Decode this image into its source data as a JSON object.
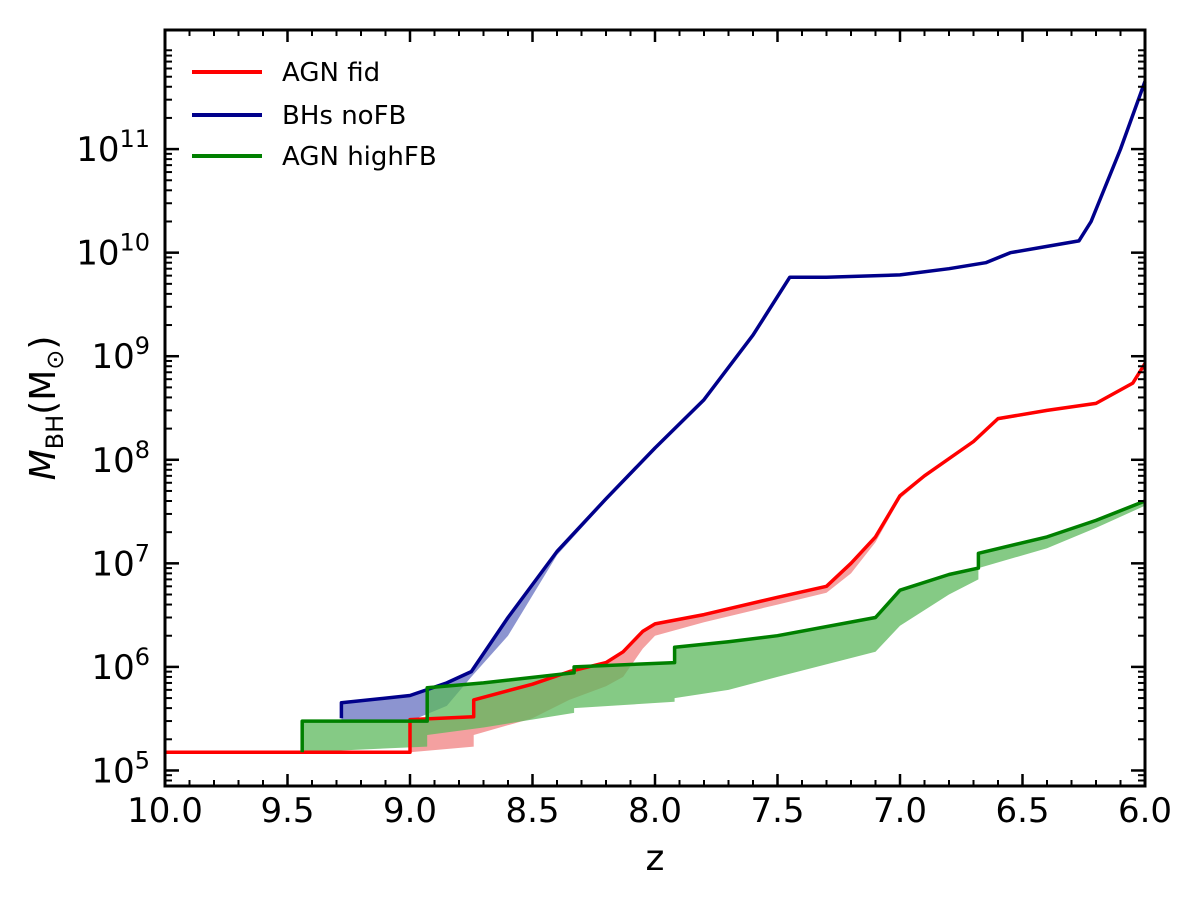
{
  "chart_data": {
    "type": "line",
    "xlabel": "z",
    "ylabel": {
      "main": "M",
      "sub": "BH",
      "unit_open": "(M",
      "unit_sub": "⊙",
      "unit_close": ")"
    },
    "xlim": [
      10.0,
      6.0
    ],
    "ylim_log10": [
      4.85,
      12.15
    ],
    "yscale": "log",
    "xticks": [
      {
        "value": 10.0,
        "label": "10.0"
      },
      {
        "value": 9.5,
        "label": "9.5"
      },
      {
        "value": 9.0,
        "label": "9.0"
      },
      {
        "value": 8.5,
        "label": "8.5"
      },
      {
        "value": 8.0,
        "label": "8.0"
      },
      {
        "value": 7.5,
        "label": "7.5"
      },
      {
        "value": 7.0,
        "label": "7.0"
      },
      {
        "value": 6.5,
        "label": "6.5"
      },
      {
        "value": 6.0,
        "label": "6.0"
      }
    ],
    "yticks": [
      {
        "exp": 5,
        "base": "10",
        "sup": "5"
      },
      {
        "exp": 6,
        "base": "10",
        "sup": "6"
      },
      {
        "exp": 7,
        "base": "10",
        "sup": "7"
      },
      {
        "exp": 8,
        "base": "10",
        "sup": "8"
      },
      {
        "exp": 9,
        "base": "10",
        "sup": "9"
      },
      {
        "exp": 10,
        "base": "10",
        "sup": "10"
      },
      {
        "exp": 11,
        "base": "10",
        "sup": "11"
      }
    ],
    "legend_position": "top-left",
    "series": [
      {
        "name": "AGN fid",
        "color": "#ff0000",
        "band_color": "#f08080",
        "x": [
          10.0,
          9.0,
          9.0,
          8.74,
          8.74,
          8.5,
          8.35,
          8.2,
          8.13,
          8.05,
          8.0,
          7.8,
          7.5,
          7.3,
          7.2,
          7.1,
          7.0,
          6.9,
          6.7,
          6.6,
          6.4,
          6.2,
          6.05,
          6.0
        ],
        "y": [
          150000.0,
          150000.0,
          310000.0,
          330000.0,
          480000.0,
          680000.0,
          900000.0,
          1100000.0,
          1400000.0,
          2200000.0,
          2600000.0,
          3200000.0,
          4700000.0,
          6000000.0,
          10000000.0,
          18000000.0,
          45000000.0,
          70000000.0,
          150000000.0,
          250000000.0,
          300000000.0,
          350000000.0,
          550000000.0,
          850000000.0
        ],
        "band_lower": [
          150000.0,
          150000.0,
          150000.0,
          170000.0,
          220000.0,
          320000.0,
          480000.0,
          650000.0,
          800000.0,
          1500000.0,
          2000000.0,
          2700000.0,
          4000000.0,
          5200000.0,
          8000000.0,
          16000000.0,
          42000000.0,
          67000000.0,
          145000000.0,
          240000000.0,
          290000000.0,
          340000000.0,
          530000000.0,
          820000000.0
        ]
      },
      {
        "name": "BHs noFB",
        "color": "#00008b",
        "band_color": "#6670c0",
        "x": [
          9.28,
          9.28,
          9.0,
          8.85,
          8.75,
          8.6,
          8.4,
          8.2,
          8.0,
          7.8,
          7.6,
          7.45,
          7.3,
          7.0,
          6.8,
          6.65,
          6.55,
          6.4,
          6.27,
          6.22,
          6.1,
          6.0
        ],
        "y": [
          320000.0,
          450000.0,
          530000.0,
          700000.0,
          900000.0,
          3000000.0,
          13000000.0,
          42000000.0,
          130000000.0,
          380000000.0,
          1600000000.0,
          5800000000.0,
          5800000000.0,
          6100000000.0,
          7000000000.0,
          8000000000.0,
          10000000000.0,
          11500000000.0,
          13000000000.0,
          20000000000.0,
          100000000000.0,
          450000000000.0
        ],
        "band_lower": [
          320000.0,
          300000.0,
          300000.0,
          420000.0,
          800000.0,
          2000000.0,
          12000000.0,
          40000000.0,
          125000000.0,
          370000000.0,
          1550000000.0,
          5600000000.0,
          5700000000.0,
          6000000000.0,
          6900000000.0,
          7900000000.0,
          9800000000.0,
          11200000000.0,
          12800000000.0,
          19000000000.0,
          95000000000.0,
          430000000000.0
        ]
      },
      {
        "name": "AGN highFB",
        "color": "#008000",
        "band_color": "#5cb85c",
        "x": [
          9.44,
          9.44,
          8.93,
          8.93,
          8.7,
          8.33,
          8.33,
          7.92,
          7.92,
          7.7,
          7.5,
          7.1,
          7.0,
          6.8,
          6.68,
          6.68,
          6.4,
          6.2,
          6.0
        ],
        "y": [
          150000.0,
          300000.0,
          300000.0,
          630000.0,
          700000.0,
          880000.0,
          1000000.0,
          1100000.0,
          1550000.0,
          1750000.0,
          2000000.0,
          3000000.0,
          5500000.0,
          7800000.0,
          9000000.0,
          12500000.0,
          18000000.0,
          26000000.0,
          40000000.0
        ],
        "band_lower": [
          150000.0,
          150000.0,
          170000.0,
          220000.0,
          260000.0,
          360000.0,
          400000.0,
          460000.0,
          500000.0,
          600000.0,
          800000.0,
          1400000.0,
          2500000.0,
          5000000.0,
          7000000.0,
          9000000.0,
          14000000.0,
          22000000.0,
          36000000.0
        ]
      }
    ]
  }
}
